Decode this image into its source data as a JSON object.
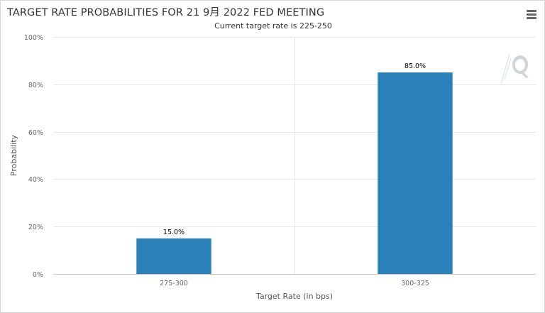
{
  "chart_data": {
    "type": "bar",
    "title": "TARGET RATE PROBABILITIES FOR 21 9月 2022 FED MEETING",
    "subtitle": "Current target rate is 225-250",
    "categories": [
      "275-300",
      "300-325"
    ],
    "values": [
      15.0,
      85.0
    ],
    "data_labels": [
      "15.0%",
      "85.0%"
    ],
    "xlabel": "Target Rate (in bps)",
    "ylabel": "Probability",
    "ylim": [
      0,
      100
    ],
    "yticks": [
      0,
      20,
      40,
      60,
      80,
      100
    ],
    "ytick_labels": [
      "0%",
      "20%",
      "40%",
      "60%",
      "80%",
      "100%"
    ],
    "grid": true,
    "legend": "none",
    "bar_color": "#2a80b9"
  }
}
